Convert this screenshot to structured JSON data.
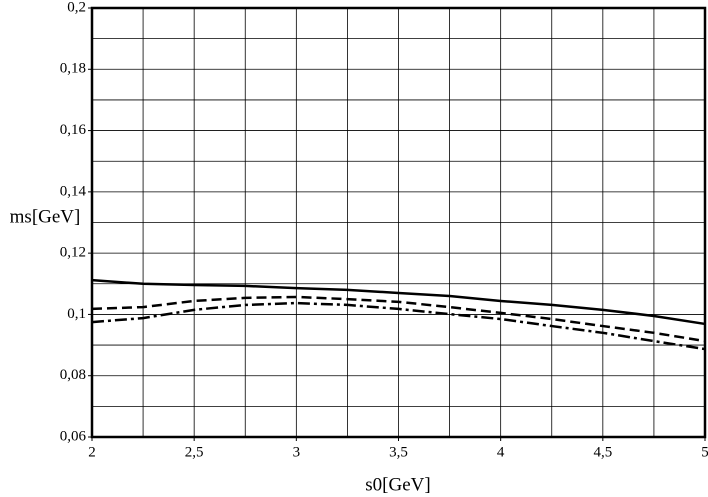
{
  "chart_data": {
    "type": "line",
    "xlabel": "s0[GeV]",
    "ylabel": "ms[GeV]",
    "x": [
      2,
      2.25,
      2.5,
      2.75,
      3,
      3.25,
      3.5,
      3.75,
      4,
      4.25,
      4.5,
      4.75,
      5
    ],
    "series": [
      {
        "color": "#000000",
        "style": "solid",
        "values": [
          0.1112,
          0.11,
          0.1096,
          0.1093,
          0.1086,
          0.108,
          0.107,
          0.106,
          0.1044,
          0.1031,
          0.1015,
          0.0995,
          0.0969
        ]
      },
      {
        "color": "#000000",
        "style": "dashed",
        "values": [
          0.1018,
          0.1024,
          0.1044,
          0.1054,
          0.1057,
          0.105,
          0.1041,
          0.1024,
          0.1005,
          0.0985,
          0.0962,
          0.094,
          0.0913
        ]
      },
      {
        "color": "#000000",
        "style": "dashdot",
        "values": [
          0.0975,
          0.0988,
          0.1015,
          0.1031,
          0.1037,
          0.1031,
          0.1018,
          0.1001,
          0.0985,
          0.0962,
          0.094,
          0.0913,
          0.0887
        ]
      }
    ],
    "xlim": [
      2,
      5
    ],
    "ylim": [
      0.06,
      0.2
    ],
    "xticks": [
      2,
      {
        "value": 2.5,
        "label": "2,5"
      },
      3,
      {
        "value": 3.5,
        "label": "3,5"
      },
      4,
      {
        "value": 4.5,
        "label": "4,5"
      },
      5
    ],
    "yticks": [
      {
        "value": 0.06,
        "label": "0,06"
      },
      {
        "value": 0.08,
        "label": "0,08"
      },
      {
        "value": 0.1,
        "label": "0,1"
      },
      {
        "value": 0.12,
        "label": "0,12"
      },
      {
        "value": 0.14,
        "label": "0,14"
      },
      {
        "value": 0.16,
        "label": "0,16"
      },
      {
        "value": 0.18,
        "label": "0,18"
      },
      {
        "value": 0.2,
        "label": "0,2"
      }
    ],
    "xgrid": [
      2.25,
      2.5,
      2.75,
      3,
      3.25,
      3.5,
      3.75,
      4,
      4.25,
      4.5,
      4.75
    ],
    "ygrid": [
      0.07,
      0.08,
      0.09,
      0.1,
      0.11,
      0.12,
      0.13,
      0.14,
      0.15,
      0.16,
      0.17,
      0.18,
      0.19
    ]
  }
}
